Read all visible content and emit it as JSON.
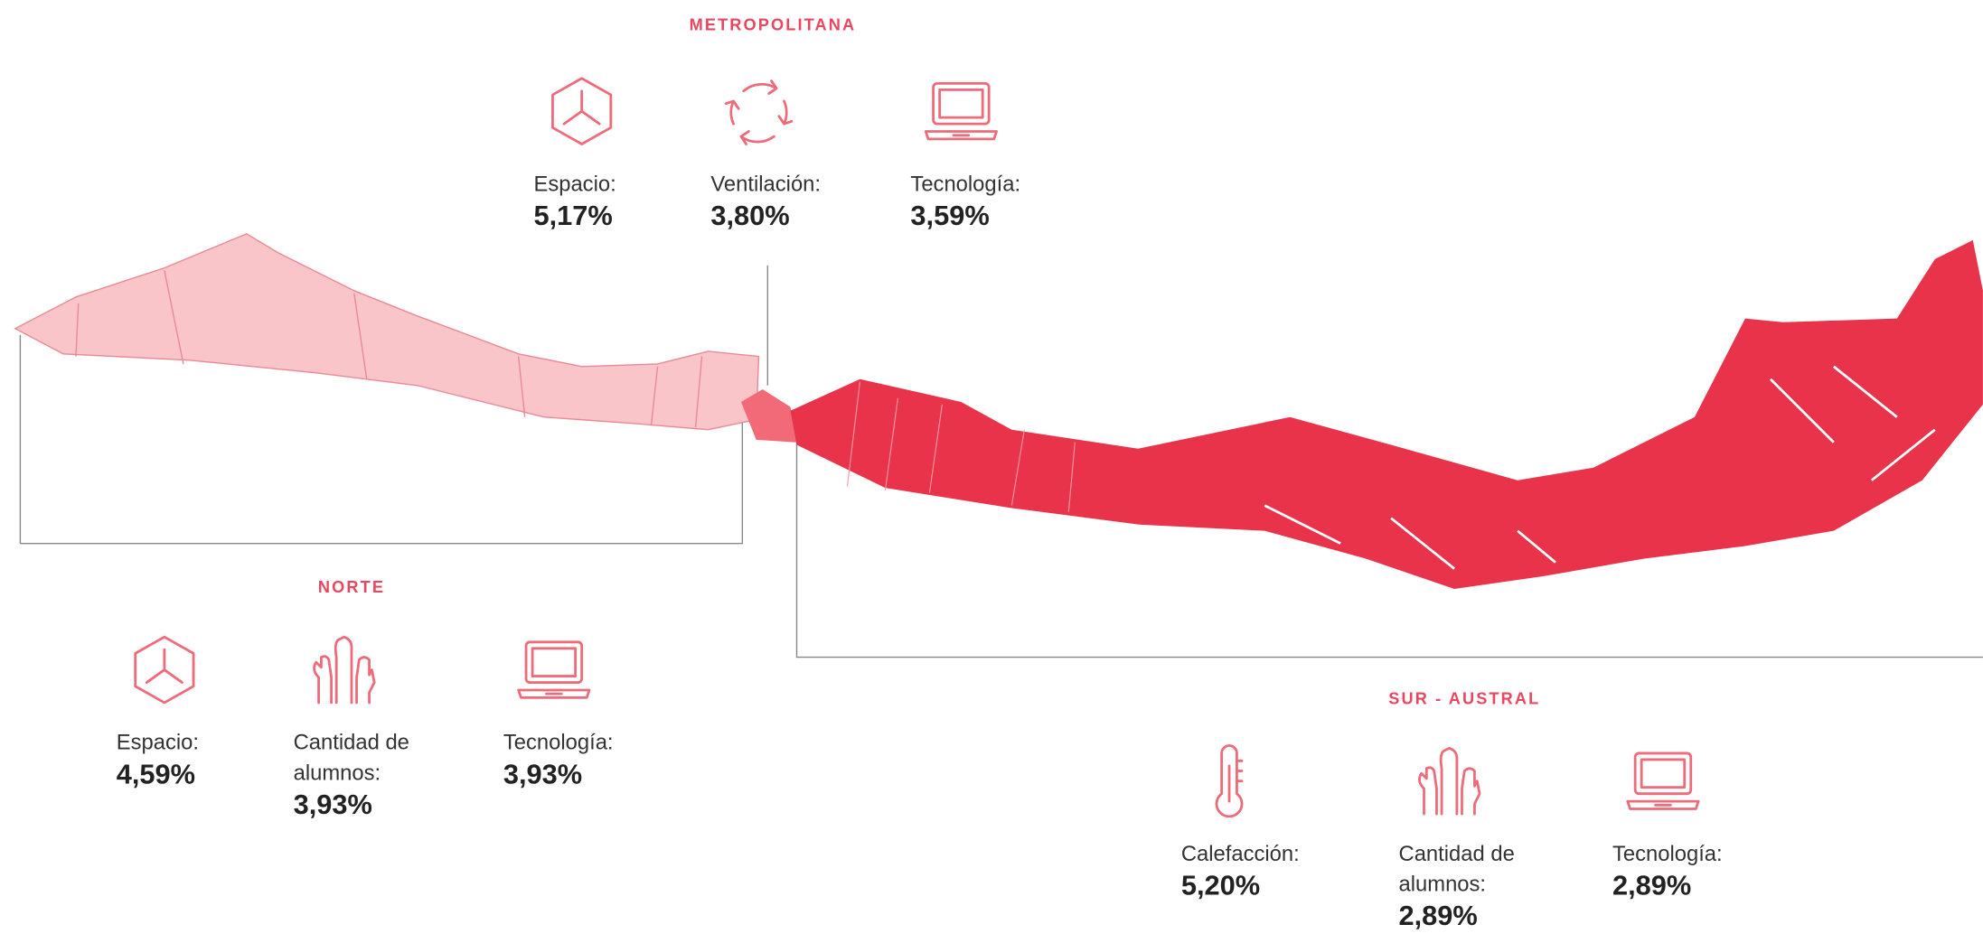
{
  "regions": [
    {
      "title": "METROPOLITANA",
      "items": [
        {
          "icon": "espacio",
          "label": "Espacio:",
          "value": "5,17%"
        },
        {
          "icon": "ventilacion",
          "label": "Ventilación:",
          "value": "3,80%"
        },
        {
          "icon": "tecnologia",
          "label": "Tecnología:",
          "value": "3,59%"
        }
      ]
    },
    {
      "title": "NORTE",
      "items": [
        {
          "icon": "espacio",
          "label": "Espacio:",
          "value": "4,59%"
        },
        {
          "icon": "alumnos",
          "label": "Cantidad de alumnos:",
          "value": "3,93%"
        },
        {
          "icon": "tecnologia",
          "label": "Tecnología:",
          "value": "3,93%"
        }
      ]
    },
    {
      "title": "SUR - AUSTRAL",
      "items": [
        {
          "icon": "calefaccion",
          "label": "Calefacción:",
          "value": "5,20%"
        },
        {
          "icon": "alumnos",
          "label": "Cantidad de alumnos:",
          "value": "2,89%"
        },
        {
          "icon": "tecnologia",
          "label": "Tecnología:",
          "value": "2,89%"
        }
      ]
    }
  ]
}
